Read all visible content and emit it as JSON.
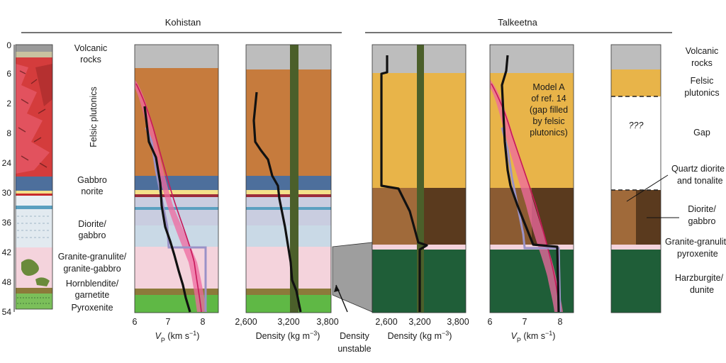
{
  "headers": {
    "left": "Kohistan",
    "right": "Talkeetna"
  },
  "depth_ticks": [
    "0",
    "6",
    "2",
    "8",
    "24",
    "30",
    "36",
    "42",
    "48",
    "54"
  ],
  "left_labels": {
    "volcanic": [
      "Volcanic",
      "rocks"
    ],
    "felsic": "Felsic plutonics",
    "gabbro": [
      "Gabbro",
      "norite"
    ],
    "diorite": [
      "Diorite/",
      "gabbro"
    ],
    "granulite": [
      "Granite-granulite/",
      "granite-gabbro"
    ],
    "hornblendite": [
      "Hornblendite/",
      "garnetite"
    ],
    "pyroxenite": "Pyroxenite"
  },
  "right_labels": {
    "volcanic": [
      "Volcanic",
      "rocks"
    ],
    "felsic": [
      "Felsic",
      "plutonics"
    ],
    "gap": "Gap",
    "quartz": [
      "Quartz diorite",
      "and tonalite"
    ],
    "diorite": [
      "Diorite/",
      "gabbro"
    ],
    "granulite": [
      "Granite-granulite",
      "pyroxenite"
    ],
    "harzburgite": [
      "Harzburgite/",
      "dunite"
    ]
  },
  "model_note": [
    "Model A",
    "of ref. 14",
    "(gap filled",
    "by felsic",
    "plutonics)"
  ],
  "question_marks": "???",
  "density_unstable": [
    "Density",
    "unstable"
  ],
  "axes": {
    "vp": {
      "ticks": [
        "6",
        "7",
        "8"
      ],
      "label_pre": "V",
      "label_sub": "P",
      "label_post": " (km s",
      "label_sup": "−1",
      "label_end": ")"
    },
    "density": {
      "ticks": [
        "2,600",
        "3,200",
        "3,800"
      ],
      "label_pre": "Density (kg m",
      "label_sup": "−3",
      "label_end": ")"
    }
  },
  "colors": {
    "volcanic": "#bdbdbd",
    "kohistan_felsic": "#c67b3d",
    "talkeetna_felsic": "#e8b449",
    "gabbro_blue": "#4d6f9c",
    "diorite_light": "#c9d9e6",
    "granulite_pink": "#f4d3dc",
    "hornblendite": "#8c7a3a",
    "pyroxenite": "#5fb845",
    "talkeetna_diorite": "#a06a3a",
    "talkeetna_diorite_dark": "#5a3a1e",
    "harzburgite": "#1f5e38",
    "mantle_band": "#4b5f2a",
    "pink_band": "#ef6aa0"
  }
}
